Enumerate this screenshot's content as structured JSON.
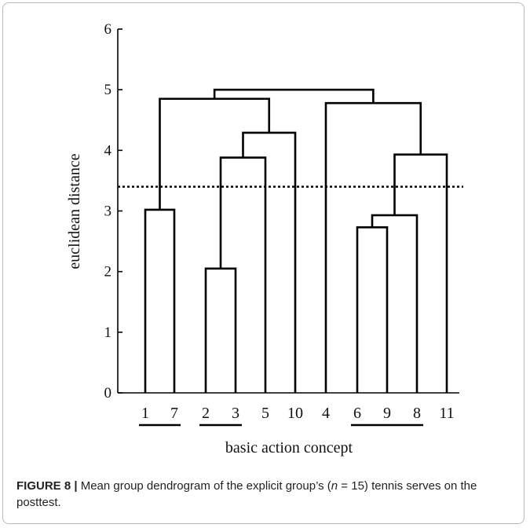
{
  "chart_data": {
    "type": "dendrogram",
    "xlabel": "basic action concept",
    "ylabel": "euclidean distance",
    "ylim": [
      0,
      6
    ],
    "yticks": [
      0,
      1,
      2,
      3,
      4,
      5,
      6
    ],
    "leaf_order": [
      "1",
      "7",
      "2",
      "3",
      "5",
      "10",
      "4",
      "6",
      "9",
      "8",
      "11"
    ],
    "cutoff_distance": 3.4,
    "merges": [
      {
        "left": "1",
        "right": "7",
        "height": 3.02
      },
      {
        "left": "2",
        "right": "3",
        "height": 2.05
      },
      {
        "left": "[2,3]",
        "right": "5",
        "height": 3.88
      },
      {
        "left": "[2,3,5]",
        "right": "10",
        "height": 4.29
      },
      {
        "left": "[1,7]",
        "right": "[2,3,5,10]",
        "height": 4.85
      },
      {
        "left": "6",
        "right": "9",
        "height": 2.73
      },
      {
        "left": "[6,9]",
        "right": "8",
        "height": 2.93
      },
      {
        "left": "[6,9,8]",
        "right": "11",
        "height": 3.93
      },
      {
        "left": "4",
        "right": "[6,9,8,11]",
        "height": 4.78
      },
      {
        "left": "[1,7,2,3,5,10]",
        "right": "[4,6,9,8,11]",
        "height": 5.0
      }
    ],
    "underlined_groups": [
      [
        "1",
        "7"
      ],
      [
        "2",
        "3"
      ],
      [
        "6",
        "9",
        "8"
      ]
    ]
  },
  "caption": {
    "label": "FIGURE 8 |",
    "text_before": " Mean group dendrogram of the explicit group’s (",
    "italic": "n",
    "text_after": " = 15) tennis serves on the posttest."
  }
}
